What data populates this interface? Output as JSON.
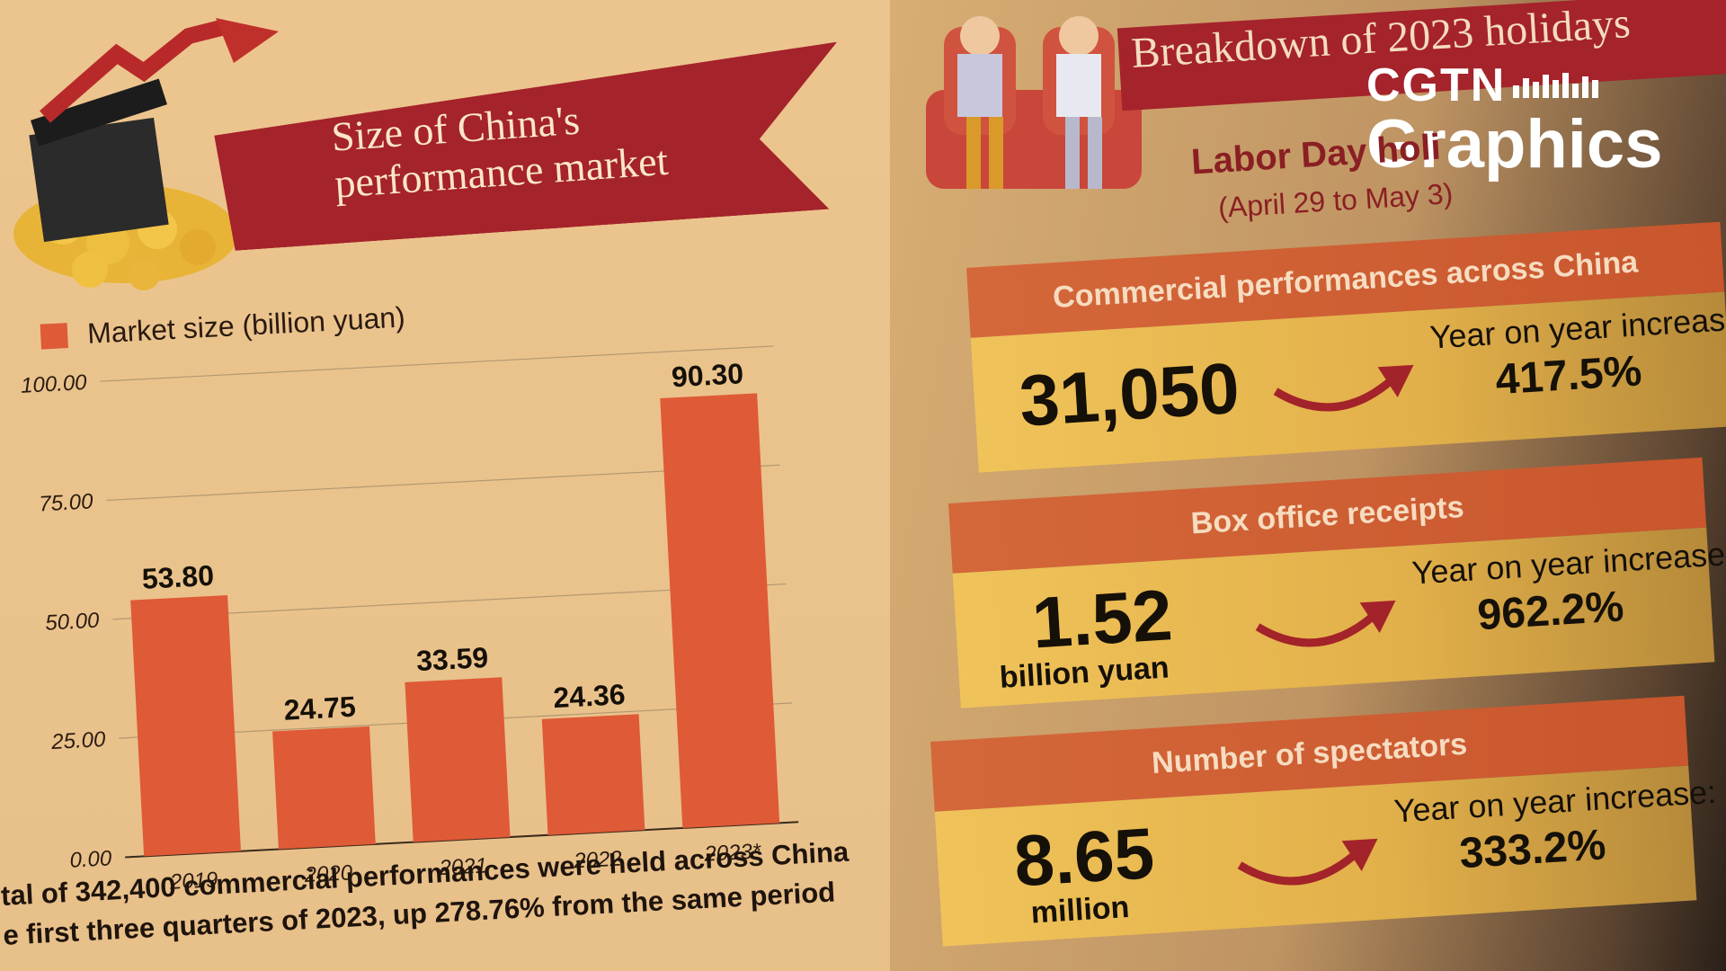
{
  "left": {
    "banner_title_line1": "Size of China's",
    "banner_title_line2": "performance market",
    "legend_label": "Market size (billion yuan)",
    "footnote_line1": "tal of 342,400 commercial performances were held across China",
    "footnote_line2": "e first three quarters of 2023, up 278.76% from the same period"
  },
  "chart_data": {
    "type": "bar",
    "categories": [
      "2019",
      "2020",
      "2021",
      "2022",
      "2023*"
    ],
    "series": [
      {
        "name": "Market size (billion yuan)",
        "values": [
          53.8,
          24.75,
          33.59,
          24.36,
          90.3
        ]
      }
    ],
    "data_labels": [
      "53.80",
      "24.75",
      "33.59",
      "24.36",
      "90.30"
    ],
    "yticks": [
      "0.00",
      "25.00",
      "50.00",
      "75.00",
      "100.00"
    ],
    "ylim": [
      0,
      100
    ],
    "title": "",
    "xlabel": "",
    "ylabel": "",
    "grid": true,
    "bar_color": "#df5a36"
  },
  "right": {
    "banner_title": "Breakdown of 2023 holidays",
    "holiday_title": "Labor Day holi",
    "holiday_dates": "(April 29 to May 3)",
    "logo_top": "CGTN",
    "logo_bottom": "Graphics",
    "cards": [
      {
        "heading": "Commercial performances across China",
        "value": "31,050",
        "unit": "",
        "yoy_label": "Year on year increase:",
        "yoy_value": "417.5%"
      },
      {
        "heading": "Box office receipts",
        "value": "1.52",
        "unit": "billion yuan",
        "yoy_label": "Year on year increase:",
        "yoy_value": "962.2%"
      },
      {
        "heading": "Number of spectators",
        "value": "8.65",
        "unit": "million",
        "yoy_label": "Year on year increase:",
        "yoy_value": "333.2%"
      }
    ]
  },
  "colors": {
    "banner_red": "#a5232b",
    "bar_orange": "#df5a36",
    "card_header": "#d4683a",
    "card_body": "#f0c35a",
    "holiday_text": "#8a1f23"
  }
}
